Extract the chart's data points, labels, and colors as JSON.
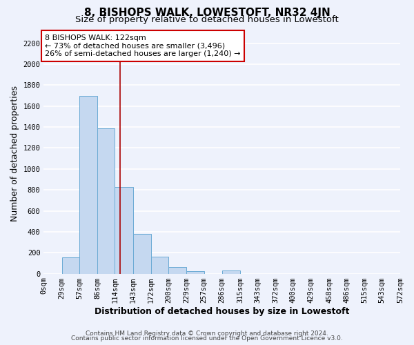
{
  "title": "8, BISHOPS WALK, LOWESTOFT, NR32 4JN",
  "subtitle": "Size of property relative to detached houses in Lowestoft",
  "xlabel": "Distribution of detached houses by size in Lowestoft",
  "ylabel": "Number of detached properties",
  "bar_edges": [
    0,
    29,
    57,
    86,
    114,
    143,
    172,
    200,
    229,
    257,
    286,
    315,
    343,
    372,
    400,
    429,
    458,
    486,
    515,
    543,
    572
  ],
  "bar_heights": [
    0,
    155,
    1700,
    1390,
    825,
    380,
    160,
    60,
    25,
    0,
    30,
    0,
    0,
    0,
    0,
    0,
    0,
    0,
    0,
    0
  ],
  "bar_color": "#c5d8f0",
  "bar_edge_color": "#6aaad4",
  "vline_x": 122,
  "vline_color": "#aa0000",
  "annotation_text": "8 BISHOPS WALK: 122sqm\n← 73% of detached houses are smaller (3,496)\n26% of semi-detached houses are larger (1,240) →",
  "annotation_box_facecolor": "#ffffff",
  "annotation_box_edgecolor": "#cc0000",
  "ylim": [
    0,
    2300
  ],
  "yticks": [
    0,
    200,
    400,
    600,
    800,
    1000,
    1200,
    1400,
    1600,
    1800,
    2000,
    2200
  ],
  "xtick_labels": [
    "0sqm",
    "29sqm",
    "57sqm",
    "86sqm",
    "114sqm",
    "143sqm",
    "172sqm",
    "200sqm",
    "229sqm",
    "257sqm",
    "286sqm",
    "315sqm",
    "343sqm",
    "372sqm",
    "400sqm",
    "429sqm",
    "458sqm",
    "486sqm",
    "515sqm",
    "543sqm",
    "572sqm"
  ],
  "footer_line1": "Contains HM Land Registry data © Crown copyright and database right 2024.",
  "footer_line2": "Contains public sector information licensed under the Open Government Licence v3.0.",
  "bg_color": "#eef2fc",
  "grid_color": "#ffffff",
  "title_fontsize": 11,
  "subtitle_fontsize": 9.5,
  "axis_label_fontsize": 9,
  "tick_fontsize": 7.5,
  "annotation_fontsize": 8,
  "footer_fontsize": 6.5
}
